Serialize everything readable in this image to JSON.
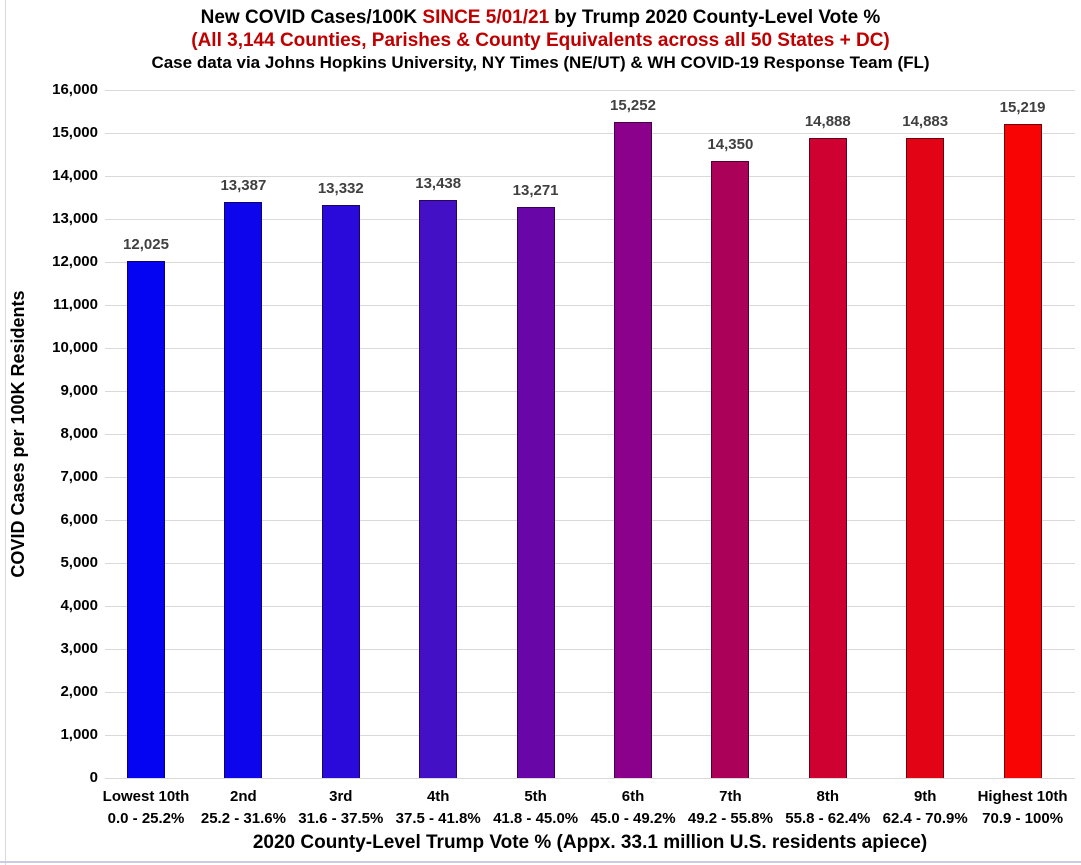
{
  "header": {
    "title_prefix": "New COVID Cases/100K ",
    "title_highlight": "SINCE 5/01/21",
    "title_suffix": " by Trump 2020 County-Level Vote %",
    "subtitle": "(All 3,144 Counties, Parishes & County Equivalents across all 50 States + DC)",
    "source_line": "Case data via Johns Hopkins University, NY Times (NE/UT) & WH COVID-19 Response Team (FL)",
    "highlight_color": "#C00000",
    "text_color": "#000000"
  },
  "chart_data": {
    "type": "bar",
    "title": "New COVID Cases/100K SINCE 5/01/21 by Trump 2020 County-Level Vote %",
    "subtitle": "(All 3,144 Counties, Parishes & County Equivalents across all 50 States + DC)",
    "source": "Case data via Johns Hopkins University, NY Times (NE/UT) & WH COVID-19 Response Team (FL)",
    "xlabel": "2020 County-Level Trump Vote % (Appx. 33.1 million U.S. residents apiece)",
    "ylabel": "COVID Cases per 100K Residents",
    "ylim": [
      0,
      16000
    ],
    "ytick_step": 1000,
    "grid": true,
    "legend": "none",
    "categories": [
      "Lowest 10th",
      "2nd",
      "3rd",
      "4th",
      "5th",
      "6th",
      "7th",
      "8th",
      "9th",
      "Highest 10th"
    ],
    "category_sublabels": [
      "0.0 - 25.2%",
      "25.2 - 31.6%",
      "31.6 - 37.5%",
      "37.5 - 41.8%",
      "41.8 - 45.0%",
      "45.0 - 49.2%",
      "49.2 - 55.8%",
      "55.8 - 62.4%",
      "62.4 - 70.9%",
      "70.9 - 100%"
    ],
    "values": [
      12025,
      13387,
      13332,
      13438,
      13271,
      15252,
      14350,
      14888,
      14883,
      15219
    ],
    "value_labels": [
      "12,025",
      "13,387",
      "13,332",
      "13,438",
      "13,271",
      "15,252",
      "14,350",
      "14,888",
      "14,883",
      "15,219"
    ],
    "bar_colors": [
      "#0404F2",
      "#0D06EC",
      "#2A0ADA",
      "#4410C6",
      "#6806A8",
      "#8C018C",
      "#AC0158",
      "#CE0130",
      "#E20314",
      "#F90404"
    ],
    "bar_border_color": "rgba(20,0,20,0.6)",
    "gridline_color": "#D9D9D9",
    "value_label_color": "#404040"
  }
}
